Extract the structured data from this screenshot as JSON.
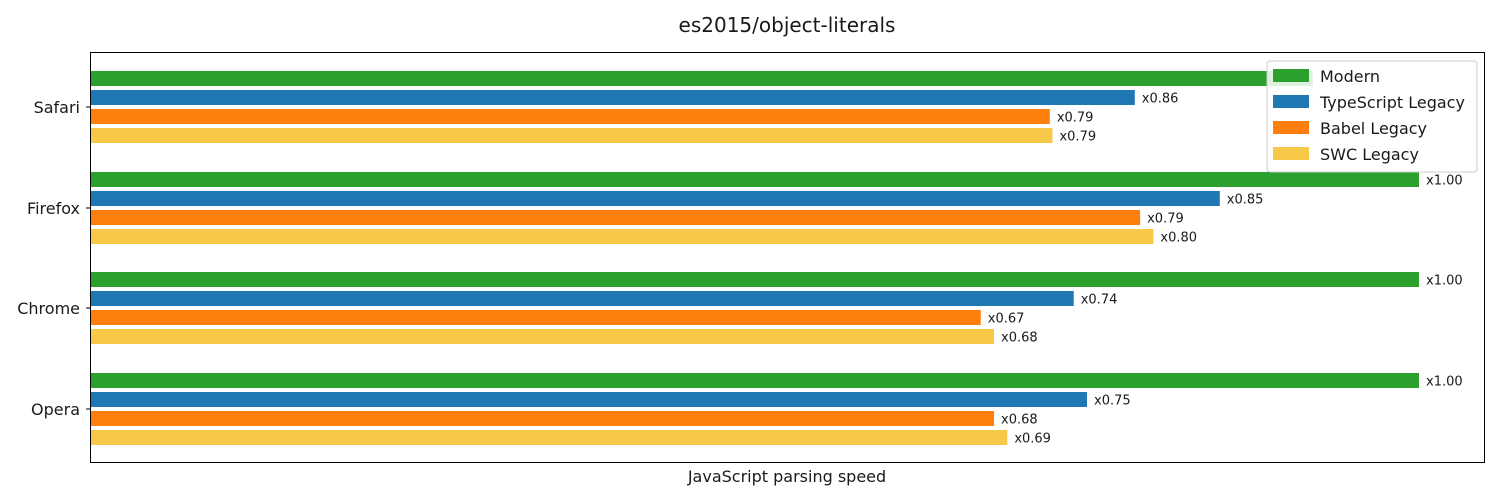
{
  "chart_data": {
    "type": "bar",
    "orientation": "horizontal",
    "title": "es2015/object-literals",
    "xlabel": "JavaScript parsing speed",
    "ylabel": "",
    "categories": [
      "Safari",
      "Firefox",
      "Chrome",
      "Opera"
    ],
    "series": [
      {
        "name": "Modern",
        "color": "#2ca02c",
        "values": [
          0.92,
          1.0,
          1.0,
          1.0
        ],
        "labels": [
          "",
          "x1.00",
          "x1.00",
          "x1.00"
        ]
      },
      {
        "name": "TypeScript Legacy",
        "color": "#1f77b4",
        "values": [
          0.786,
          0.85,
          0.74,
          0.75
        ],
        "labels": [
          "x0.86",
          "x0.85",
          "x0.74",
          "x0.75"
        ]
      },
      {
        "name": "Babel Legacy",
        "color": "#ff7f0e",
        "values": [
          0.722,
          0.79,
          0.67,
          0.68
        ],
        "labels": [
          "x0.79",
          "x0.79",
          "x0.67",
          "x0.68"
        ]
      },
      {
        "name": "SWC Legacy",
        "color": "#f7c948",
        "values": [
          0.724,
          0.8,
          0.68,
          0.69
        ],
        "labels": [
          "x0.79",
          "x0.80",
          "x0.68",
          "x0.69"
        ]
      }
    ],
    "legend_position": "top-right",
    "grid": false,
    "xticks": false
  }
}
